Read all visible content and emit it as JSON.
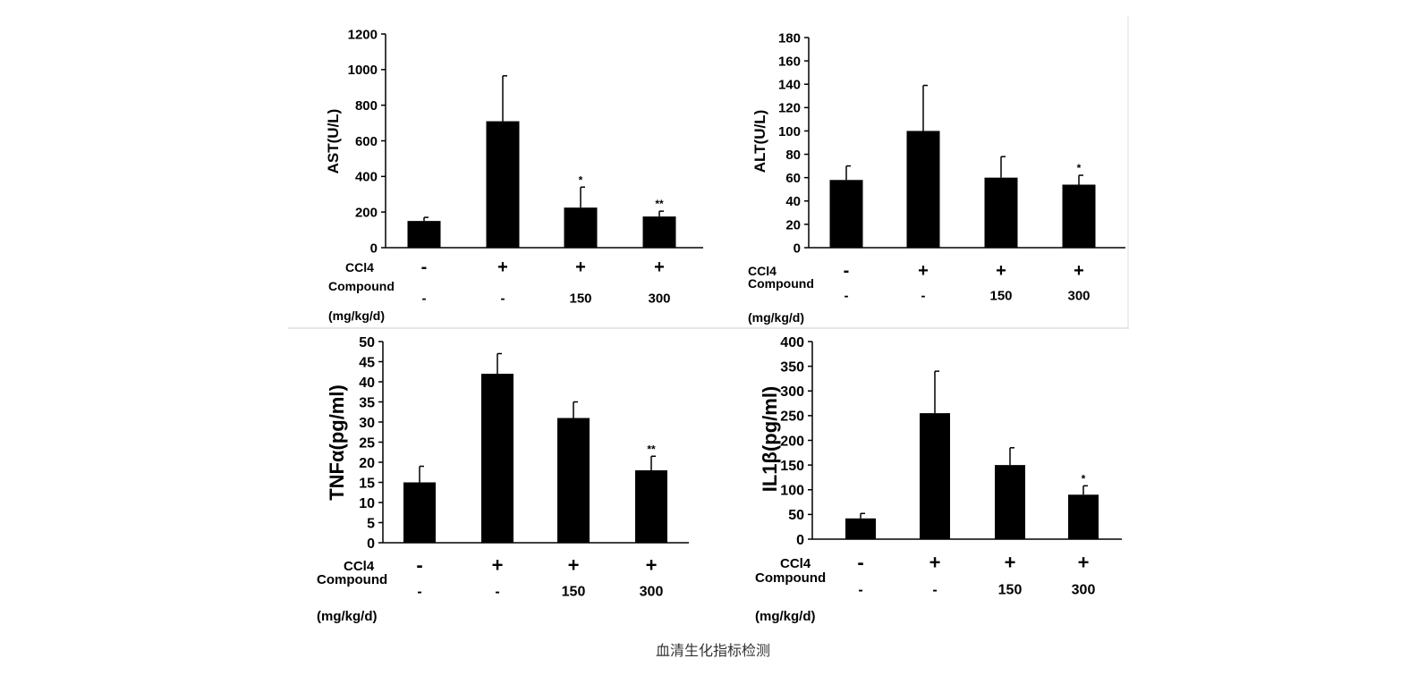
{
  "caption": "血清生化指标检测",
  "row_labels": {
    "ccl4": "CCl4",
    "compound_line1": "Compound",
    "compound_line2": "(mg/kg/d)"
  },
  "chart_data": [
    {
      "type": "bar",
      "ylabel": "AST(U/L)",
      "ylim": [
        0,
        1200
      ],
      "yticks": [
        0,
        200,
        400,
        600,
        800,
        1000,
        1200
      ],
      "categories": [
        "1",
        "2",
        "3",
        "4"
      ],
      "values": [
        150,
        710,
        225,
        175
      ],
      "errors": [
        20,
        255,
        115,
        30
      ],
      "significance": [
        "",
        "",
        "*",
        "**"
      ],
      "ccl4": [
        "-",
        "+",
        "+",
        "+"
      ],
      "compound": [
        "-",
        "-",
        "150",
        "300"
      ],
      "bar_color": "#000000"
    },
    {
      "type": "bar",
      "ylabel": "ALT(U/L)",
      "ylim": [
        0,
        180
      ],
      "yticks": [
        0,
        20,
        40,
        60,
        80,
        100,
        120,
        140,
        160,
        180
      ],
      "categories": [
        "1",
        "2",
        "3",
        "4"
      ],
      "values": [
        58,
        100,
        60,
        54
      ],
      "errors": [
        12,
        39,
        18,
        8
      ],
      "significance": [
        "",
        "",
        "",
        "*"
      ],
      "ccl4": [
        "-",
        "+",
        "+",
        "+"
      ],
      "compound": [
        "-",
        "-",
        "150",
        "300"
      ],
      "bar_color": "#000000"
    },
    {
      "type": "bar",
      "ylabel": "TNFα(pg/ml)",
      "ylim": [
        0,
        50
      ],
      "yticks": [
        0,
        5,
        10,
        15,
        20,
        25,
        30,
        35,
        40,
        45,
        50
      ],
      "categories": [
        "1",
        "2",
        "3",
        "4"
      ],
      "values": [
        15,
        42,
        31,
        18
      ],
      "errors": [
        4,
        5,
        4,
        3.5
      ],
      "significance": [
        "",
        "",
        "",
        "**"
      ],
      "ccl4": [
        "-",
        "+",
        "+",
        "+"
      ],
      "compound": [
        "-",
        "-",
        "150",
        "300"
      ],
      "bar_color": "#000000"
    },
    {
      "type": "bar",
      "ylabel": "IL1β(pg/ml)",
      "ylim": [
        0,
        400
      ],
      "yticks": [
        0,
        50,
        100,
        150,
        200,
        250,
        300,
        350,
        400
      ],
      "categories": [
        "1",
        "2",
        "3",
        "4"
      ],
      "values": [
        42,
        255,
        150,
        90
      ],
      "errors": [
        10,
        85,
        35,
        18
      ],
      "significance": [
        "",
        "",
        "",
        "*"
      ],
      "ccl4": [
        "-",
        "+",
        "+",
        "+"
      ],
      "compound": [
        "-",
        "-",
        "150",
        "300"
      ],
      "bar_color": "#000000"
    }
  ]
}
